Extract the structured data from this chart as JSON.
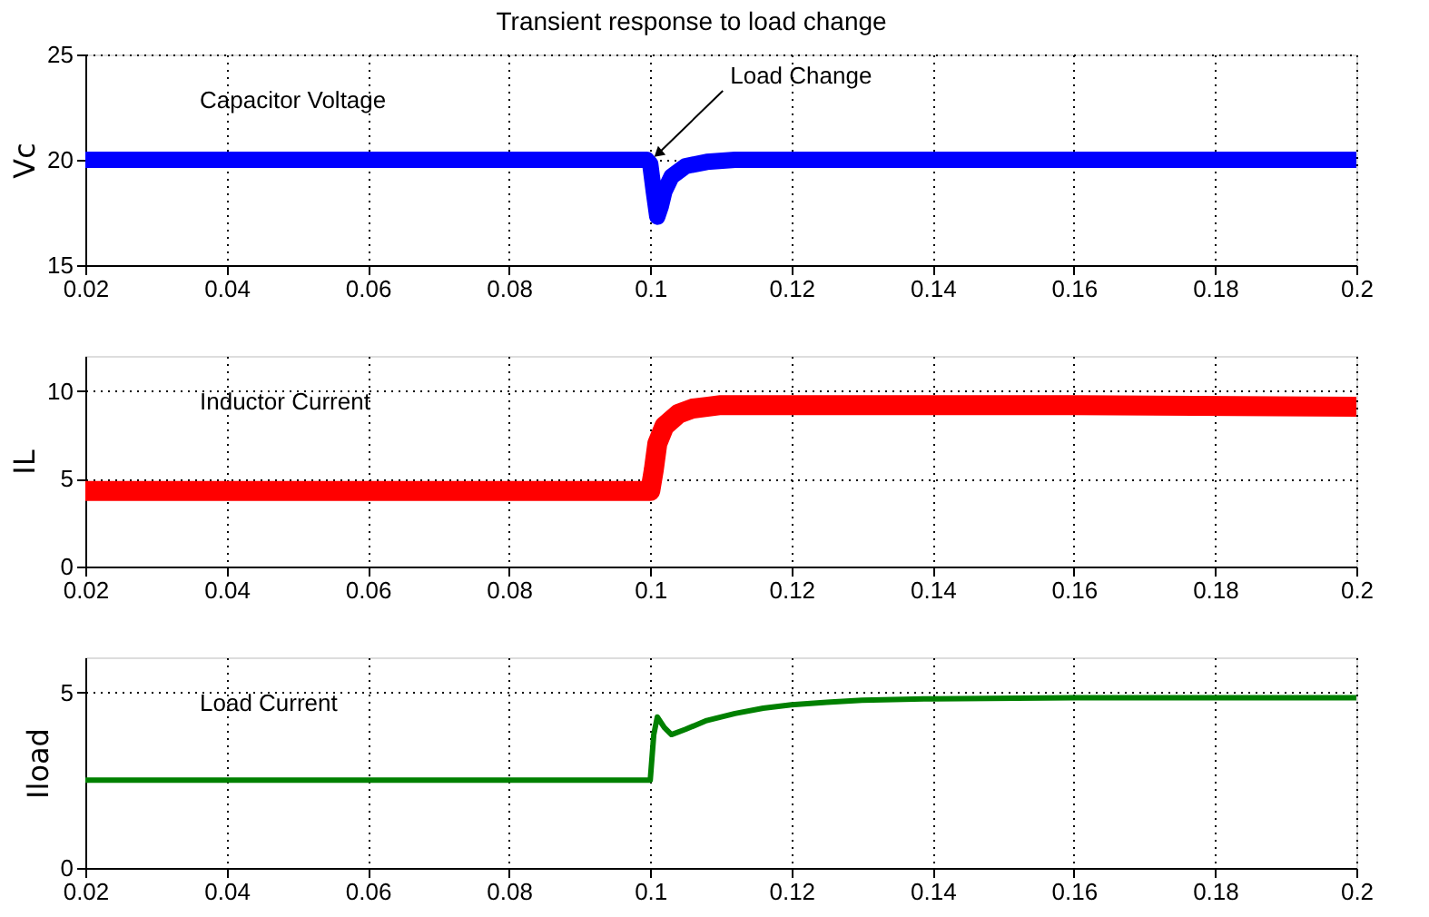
{
  "chart_data": [
    {
      "type": "line",
      "title": "Transient response to load change",
      "ylabel": "Vc",
      "xlim": [
        0.02,
        0.2
      ],
      "xticks": [
        0.02,
        0.04,
        0.06,
        0.08,
        0.1,
        0.12,
        0.14,
        0.16,
        0.18,
        0.2
      ],
      "ylim": [
        15,
        25
      ],
      "yticks": [
        15,
        20,
        25
      ],
      "grid": true,
      "annotations": [
        {
          "text": "Load Change",
          "x": 0.1,
          "y": 20
        }
      ],
      "series": [
        {
          "name": "Capacitor Voltage",
          "color": "#0000ff",
          "x": [
            0.02,
            0.04,
            0.06,
            0.08,
            0.0995,
            0.1,
            0.1005,
            0.101,
            0.1015,
            0.102,
            0.103,
            0.105,
            0.108,
            0.112,
            0.13,
            0.16,
            0.2
          ],
          "values": [
            20,
            20,
            20,
            20,
            20,
            19.8,
            18.5,
            17.3,
            17.8,
            18.5,
            19.2,
            19.7,
            19.9,
            20,
            20,
            20,
            20
          ]
        }
      ]
    },
    {
      "type": "line",
      "ylabel": "IL",
      "xlim": [
        0.02,
        0.2
      ],
      "xticks": [
        0.02,
        0.04,
        0.06,
        0.08,
        0.1,
        0.12,
        0.14,
        0.16,
        0.18,
        0.2
      ],
      "ylim": [
        0,
        12
      ],
      "yticks": [
        0,
        5,
        10
      ],
      "grid": true,
      "series": [
        {
          "name": "Inductor Current",
          "color": "#ff0000",
          "x": [
            0.02,
            0.04,
            0.06,
            0.08,
            0.1,
            0.1005,
            0.101,
            0.102,
            0.104,
            0.106,
            0.108,
            0.11,
            0.13,
            0.16,
            0.2
          ],
          "values": [
            4.3,
            4.3,
            4.3,
            4.3,
            4.3,
            5.5,
            7,
            8,
            8.7,
            9,
            9.1,
            9.2,
            9.2,
            9.2,
            9.1
          ]
        }
      ]
    },
    {
      "type": "line",
      "ylabel": "Iload",
      "xlim": [
        0.02,
        0.2
      ],
      "xticks": [
        0.02,
        0.04,
        0.06,
        0.08,
        0.1,
        0.12,
        0.14,
        0.16,
        0.18,
        0.2
      ],
      "ylim": [
        0,
        6
      ],
      "yticks": [
        0,
        5
      ],
      "grid": true,
      "series": [
        {
          "name": "Load Current",
          "color": "#008000",
          "x": [
            0.02,
            0.1,
            0.1005,
            0.101,
            0.102,
            0.103,
            0.105,
            0.108,
            0.112,
            0.116,
            0.12,
            0.125,
            0.13,
            0.14,
            0.16,
            0.2
          ],
          "values": [
            2.5,
            2.5,
            3.8,
            4.3,
            4.0,
            3.8,
            3.95,
            4.2,
            4.4,
            4.55,
            4.65,
            4.72,
            4.78,
            4.82,
            4.85,
            4.85
          ]
        }
      ]
    }
  ]
}
